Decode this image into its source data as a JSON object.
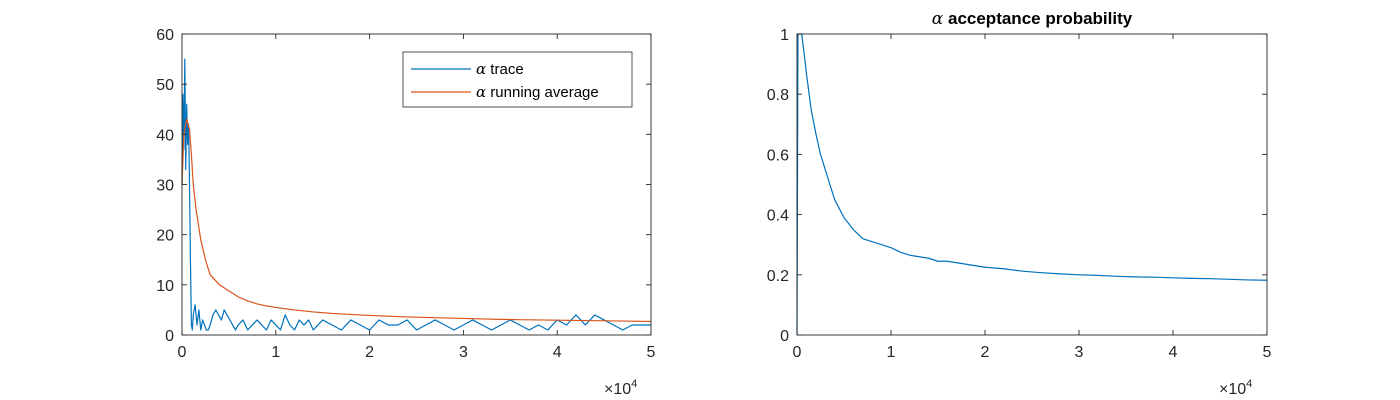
{
  "chart_data": [
    {
      "type": "line",
      "title": "",
      "xlabel": "",
      "ylabel": "",
      "xlim": [
        0,
        50000
      ],
      "ylim": [
        0,
        60
      ],
      "x_ticks": [
        0,
        10000,
        20000,
        30000,
        40000,
        50000
      ],
      "x_tick_labels": [
        "0",
        "1",
        "2",
        "3",
        "4",
        "5"
      ],
      "y_ticks": [
        0,
        10,
        20,
        30,
        40,
        50,
        60
      ],
      "y_tick_labels": [
        "0",
        "10",
        "20",
        "30",
        "40",
        "50",
        "60"
      ],
      "x_exponent": {
        "base": "×10",
        "power": "4"
      },
      "grid": false,
      "legend": {
        "placement": "top-right",
        "entries": [
          {
            "greek": "α",
            "text": " trace"
          },
          {
            "greek": "α",
            "text": " running average"
          }
        ]
      },
      "series": [
        {
          "name": "α trace",
          "color": "#0072BD",
          "x": [
            0,
            100,
            200,
            300,
            400,
            500,
            600,
            700,
            800,
            900,
            1000,
            1100,
            1200,
            1400,
            1600,
            1800,
            2000,
            2200,
            2400,
            2600,
            2800,
            3000,
            3300,
            3600,
            3900,
            4200,
            4500,
            4800,
            5100,
            5400,
            5700,
            6000,
            6500,
            7000,
            7500,
            8000,
            8500,
            9000,
            9500,
            10000,
            10500,
            11000,
            11500,
            12000,
            12500,
            13000,
            13500,
            14000,
            14500,
            15000,
            16000,
            17000,
            18000,
            19000,
            20000,
            21000,
            22000,
            23000,
            24000,
            25000,
            26000,
            27000,
            28000,
            29000,
            30000,
            31000,
            32000,
            33000,
            34000,
            35000,
            36000,
            37000,
            38000,
            39000,
            40000,
            41000,
            42000,
            43000,
            44000,
            45000,
            46000,
            47000,
            48000,
            49000,
            50000
          ],
          "y": [
            30,
            48,
            37,
            55,
            33,
            46,
            38,
            42,
            30,
            15,
            2,
            1,
            4,
            6,
            2,
            5,
            1,
            3,
            2,
            1,
            1,
            2,
            4,
            5,
            4,
            3,
            5,
            4,
            3,
            2,
            1,
            2,
            3,
            1,
            2,
            3,
            2,
            1,
            3,
            2,
            1,
            4,
            2,
            1,
            3,
            2,
            3,
            1,
            2,
            3,
            2,
            1,
            3,
            2,
            1,
            3,
            2,
            2,
            3,
            1,
            2,
            3,
            2,
            1,
            2,
            3,
            2,
            1,
            2,
            3,
            2,
            1,
            2,
            1,
            3,
            2,
            4,
            2,
            4,
            3,
            2,
            1,
            2,
            2,
            2
          ]
        },
        {
          "name": "α running average",
          "color": "#D95319",
          "x": [
            0,
            200,
            500,
            800,
            1000,
            1200,
            1500,
            2000,
            2500,
            3000,
            3500,
            4000,
            5000,
            6000,
            7000,
            8000,
            9000,
            10000,
            12000,
            14000,
            16000,
            18000,
            20000,
            22000,
            24000,
            26000,
            28000,
            30000,
            32000,
            34000,
            36000,
            38000,
            40000,
            42000,
            44000,
            46000,
            48000,
            50000
          ],
          "y": [
            30,
            40,
            43,
            41,
            36,
            30,
            25,
            19,
            15,
            12,
            11,
            10,
            8.8,
            7.6,
            6.8,
            6.2,
            5.8,
            5.5,
            5.0,
            4.6,
            4.3,
            4.1,
            3.9,
            3.75,
            3.6,
            3.5,
            3.4,
            3.3,
            3.2,
            3.12,
            3.05,
            3.0,
            2.95,
            2.9,
            2.85,
            2.8,
            2.75,
            2.7
          ]
        }
      ]
    },
    {
      "type": "line",
      "title": {
        "greek": "α",
        "text": " acceptance probability"
      },
      "xlabel": "",
      "ylabel": "",
      "xlim": [
        0,
        50000
      ],
      "ylim": [
        0,
        1
      ],
      "x_ticks": [
        0,
        10000,
        20000,
        30000,
        40000,
        50000
      ],
      "x_tick_labels": [
        "0",
        "1",
        "2",
        "3",
        "4",
        "5"
      ],
      "y_ticks": [
        0,
        0.2,
        0.4,
        0.6,
        0.8,
        1
      ],
      "y_tick_labels": [
        "0",
        "0.2",
        "0.4",
        "0.6",
        "0.8",
        "1"
      ],
      "x_exponent": {
        "base": "×10",
        "power": "4"
      },
      "grid": false,
      "series": [
        {
          "color": "#0072BD",
          "x": [
            0,
            100,
            300,
            500,
            700,
            1000,
            1500,
            2000,
            2500,
            3000,
            3500,
            4000,
            4500,
            5000,
            6000,
            7000,
            8000,
            9000,
            10000,
            11000,
            12000,
            13000,
            14000,
            15000,
            16000,
            17000,
            18000,
            20000,
            22000,
            24000,
            26000,
            28000,
            30000,
            32000,
            34000,
            36000,
            38000,
            40000,
            42000,
            44000,
            46000,
            48000,
            50000
          ],
          "y": [
            0,
            1.0,
            1.0,
            1.0,
            0.95,
            0.87,
            0.75,
            0.67,
            0.6,
            0.55,
            0.5,
            0.45,
            0.42,
            0.39,
            0.35,
            0.32,
            0.31,
            0.3,
            0.29,
            0.275,
            0.265,
            0.26,
            0.255,
            0.245,
            0.245,
            0.24,
            0.235,
            0.225,
            0.22,
            0.212,
            0.207,
            0.203,
            0.2,
            0.198,
            0.195,
            0.193,
            0.192,
            0.19,
            0.188,
            0.187,
            0.185,
            0.183,
            0.182
          ]
        }
      ]
    }
  ]
}
